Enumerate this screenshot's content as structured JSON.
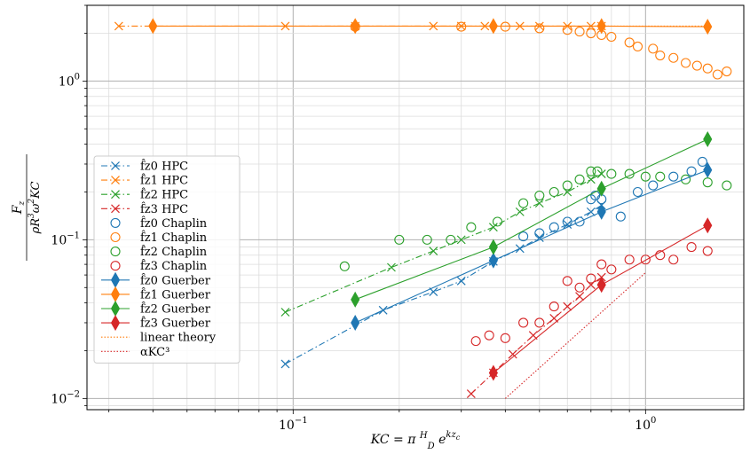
{
  "chart_data": {
    "type": "scatter",
    "xscale": "log",
    "yscale": "log",
    "xlim": [
      0.026,
      1.9
    ],
    "ylim": [
      0.0085,
      3.0
    ],
    "grid": true,
    "legend_position": "center-left",
    "xlabel": "KC = π (H/D) e^{k z_c}",
    "ylabel": "F_z / (ρ R³ ω² KC)",
    "x_ticks": [
      {
        "value": 0.1,
        "base": "10",
        "exp": "−1"
      },
      {
        "value": 1.0,
        "base": "10",
        "exp": "0"
      }
    ],
    "y_ticks": [
      {
        "value": 0.01,
        "base": "10",
        "exp": "−2"
      },
      {
        "value": 0.1,
        "base": "10",
        "exp": "−1"
      },
      {
        "value": 1.0,
        "base": "10",
        "exp": "0"
      }
    ],
    "colors": {
      "c0": "#1f77b4",
      "c1": "#ff7f0e",
      "c2": "#2ca02c",
      "c3": "#d62728"
    },
    "series": [
      {
        "name": "f̂z0 HPC",
        "marker": "x",
        "line": "dashdot",
        "color": "c0",
        "x": [
          0.095,
          0.18,
          0.25,
          0.3,
          0.37,
          0.44,
          0.5,
          0.6,
          0.7,
          0.75
        ],
        "y": [
          0.0165,
          0.036,
          0.047,
          0.055,
          0.073,
          0.088,
          0.103,
          0.125,
          0.15,
          0.165
        ]
      },
      {
        "name": "f̂z1 HPC",
        "marker": "x",
        "line": "dashdot",
        "color": "c1",
        "x": [
          0.032,
          0.095,
          0.15,
          0.25,
          0.3,
          0.35,
          0.44,
          0.5,
          0.6,
          0.7,
          0.75
        ],
        "y": [
          2.22,
          2.22,
          2.22,
          2.22,
          2.22,
          2.22,
          2.22,
          2.22,
          2.22,
          2.22,
          2.22
        ]
      },
      {
        "name": "f̂z2 HPC",
        "marker": "x",
        "line": "dashdot",
        "color": "c2",
        "x": [
          0.095,
          0.19,
          0.25,
          0.3,
          0.37,
          0.44,
          0.5,
          0.6,
          0.7,
          0.75
        ],
        "y": [
          0.035,
          0.067,
          0.085,
          0.1,
          0.12,
          0.15,
          0.17,
          0.2,
          0.24,
          0.26
        ]
      },
      {
        "name": "f̂z3 HPC",
        "marker": "x",
        "line": "dashdot",
        "color": "c3",
        "x": [
          0.32,
          0.37,
          0.42,
          0.48,
          0.55,
          0.6,
          0.65,
          0.7,
          0.75
        ],
        "y": [
          0.0107,
          0.0145,
          0.019,
          0.025,
          0.032,
          0.038,
          0.044,
          0.052,
          0.058
        ]
      },
      {
        "name": "f̂z0 Chaplin",
        "marker": "o",
        "line": "none",
        "color": "c0",
        "x": [
          0.45,
          0.5,
          0.55,
          0.6,
          0.65,
          0.7,
          0.72,
          0.75,
          0.85,
          0.95,
          1.05,
          1.2,
          1.35,
          1.45
        ],
        "y": [
          0.105,
          0.11,
          0.12,
          0.13,
          0.13,
          0.18,
          0.19,
          0.18,
          0.14,
          0.2,
          0.22,
          0.25,
          0.27,
          0.31
        ]
      },
      {
        "name": "f̂z1 Chaplin",
        "marker": "o",
        "line": "none",
        "color": "c1",
        "x": [
          0.15,
          0.3,
          0.4,
          0.5,
          0.6,
          0.65,
          0.7,
          0.75,
          0.8,
          0.9,
          0.95,
          1.05,
          1.1,
          1.2,
          1.3,
          1.4,
          1.5,
          1.6,
          1.7
        ],
        "y": [
          2.2,
          2.2,
          2.2,
          2.15,
          2.1,
          2.05,
          2.0,
          1.95,
          1.9,
          1.75,
          1.65,
          1.6,
          1.45,
          1.4,
          1.3,
          1.25,
          1.2,
          1.1,
          1.15
        ]
      },
      {
        "name": "f̂z2 Chaplin",
        "marker": "o",
        "line": "none",
        "color": "c2",
        "x": [
          0.14,
          0.2,
          0.24,
          0.28,
          0.32,
          0.38,
          0.45,
          0.5,
          0.55,
          0.6,
          0.65,
          0.7,
          0.73,
          0.8,
          0.9,
          1.0,
          1.1,
          1.3,
          1.5,
          1.7
        ],
        "y": [
          0.068,
          0.1,
          0.1,
          0.1,
          0.12,
          0.13,
          0.17,
          0.19,
          0.2,
          0.22,
          0.24,
          0.27,
          0.27,
          0.26,
          0.26,
          0.25,
          0.25,
          0.24,
          0.23,
          0.22
        ]
      },
      {
        "name": "f̂z3 Chaplin",
        "marker": "o",
        "line": "none",
        "color": "c3",
        "x": [
          0.33,
          0.36,
          0.4,
          0.45,
          0.5,
          0.55,
          0.6,
          0.65,
          0.7,
          0.75,
          0.8,
          0.9,
          1.0,
          1.1,
          1.2,
          1.35,
          1.5
        ],
        "y": [
          0.023,
          0.025,
          0.024,
          0.03,
          0.03,
          0.038,
          0.055,
          0.05,
          0.057,
          0.07,
          0.065,
          0.075,
          0.075,
          0.08,
          0.075,
          0.09,
          0.085
        ]
      },
      {
        "name": "f̂z0 Guerber",
        "marker": "d",
        "line": "solid",
        "color": "c0",
        "x": [
          0.15,
          0.37,
          0.75,
          1.5
        ],
        "y": [
          0.03,
          0.074,
          0.15,
          0.275
        ]
      },
      {
        "name": "f̂z1 Guerber",
        "marker": "d",
        "line": "solid",
        "color": "c1",
        "x": [
          0.04,
          0.15,
          0.37,
          0.75,
          1.5
        ],
        "y": [
          2.22,
          2.22,
          2.22,
          2.22,
          2.2
        ]
      },
      {
        "name": "f̂z2 Guerber",
        "marker": "d",
        "line": "solid",
        "color": "c2",
        "x": [
          0.15,
          0.37,
          0.75,
          1.5
        ],
        "y": [
          0.042,
          0.09,
          0.21,
          0.43
        ]
      },
      {
        "name": "f̂z3 Guerber",
        "marker": "d",
        "line": "solid",
        "color": "c3",
        "x": [
          0.37,
          0.75,
          1.5
        ],
        "y": [
          0.0145,
          0.052,
          0.123
        ]
      },
      {
        "name": "linear theory",
        "marker": "none",
        "line": "dotted",
        "color": "c1",
        "x": [
          0.75,
          1.5
        ],
        "y": [
          2.22,
          2.22
        ]
      },
      {
        "name": "αKC³",
        "marker": "none",
        "line": "dotted",
        "color": "c3",
        "x": [
          0.4,
          1.0
        ],
        "y": [
          0.01,
          0.062
        ]
      }
    ]
  }
}
